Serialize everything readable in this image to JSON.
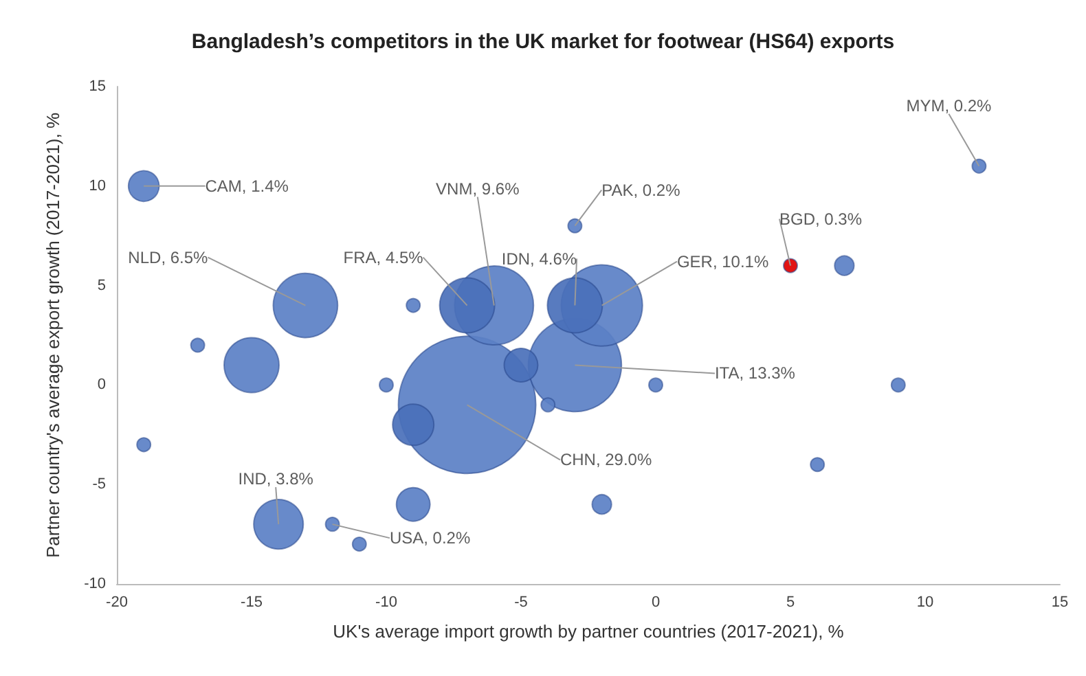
{
  "chart_data": {
    "type": "bubble",
    "title": "Bangladesh’s competitors in the UK market for footwear (HS64) exports",
    "xlabel": "UK's average import growth by partner countries (2017-2021), %",
    "ylabel": "Partner country's average export growth (2017-2021), %",
    "x": [
      -7,
      -3,
      -2,
      -6,
      -13,
      -15,
      -3,
      -7,
      -14,
      -9,
      -5,
      -9,
      -19,
      -2,
      7,
      -19,
      -4,
      5,
      -11,
      -3,
      -12,
      12,
      -10,
      -9,
      -17,
      0,
      9,
      6
    ],
    "values": [
      -1,
      1,
      4,
      4,
      4,
      1,
      4,
      4,
      -7,
      -2,
      1,
      -6,
      10,
      -6,
      6,
      -3,
      -1,
      6,
      -8,
      8,
      -7,
      11,
      0,
      4,
      2,
      0,
      0,
      -4
    ],
    "sizes": [
      1,
      0.46,
      0.35,
      0.33,
      0.22,
      0.16,
      0.16,
      0.16,
      0.13,
      0.09,
      0.06,
      0.06,
      0.05,
      0.02,
      0.02,
      0.01,
      0.01,
      0.01,
      0.01,
      0.01,
      0.01,
      0.01,
      0.01,
      0.01,
      0.01,
      0.01,
      0.01,
      0.01
    ],
    "colors": [
      "#5b80c6",
      "#5b80c6",
      "#5b80c6",
      "#5b80c6",
      "#5b80c6",
      "#5b80c6",
      "#4a70ba",
      "#4a70ba",
      "#5b80c6",
      "#4a70ba",
      "#4a70ba",
      "#5b80c6",
      "#5b80c6",
      "#5b80c6",
      "#5b80c6",
      "#5b80c6",
      "#5b80c6",
      "#e00000",
      "#5b80c6",
      "#5b80c6",
      "#5b80c6",
      "#5b80c6",
      "#5b80c6",
      "#5b80c6",
      "#5b80c6",
      "#5b80c6",
      "#5b80c6",
      "#5b80c6"
    ],
    "annotations": [
      {
        "text": "CAM, 1.4%",
        "x": -19,
        "y": 10
      },
      {
        "text": "NLD, 6.5%",
        "x": -13,
        "y": 4
      },
      {
        "text": "FRA, 4.5%",
        "x": -7,
        "y": 4
      },
      {
        "text": "VNM, 9.6%",
        "x": -6,
        "y": 4
      },
      {
        "text": "PAK, 0.2%",
        "x": -3,
        "y": 8
      },
      {
        "text": "IDN, 4.6%",
        "x": -3,
        "y": 4
      },
      {
        "text": "GER, 10.1%",
        "x": -2,
        "y": 4
      },
      {
        "text": "BGD, 0.3%",
        "x": 5,
        "y": 6
      },
      {
        "text": "MYM, 0.2%",
        "x": 12,
        "y": 11
      },
      {
        "text": "ITA, 13.3%",
        "x": -3,
        "y": 1
      },
      {
        "text": "CHN, 29.0%",
        "x": -7,
        "y": -1
      },
      {
        "text": "IND, 3.8%",
        "x": -14,
        "y": -7
      },
      {
        "text": "USA, 0.2%",
        "x": -12,
        "y": -7
      }
    ],
    "xlim": [
      -20,
      15
    ],
    "xticks": [
      -20,
      -15,
      -10,
      -5,
      0,
      5,
      10,
      15
    ],
    "ylim": [
      -10,
      15
    ],
    "yticks": [
      -10,
      -5,
      0,
      5,
      10,
      15
    ],
    "grid": false
  }
}
